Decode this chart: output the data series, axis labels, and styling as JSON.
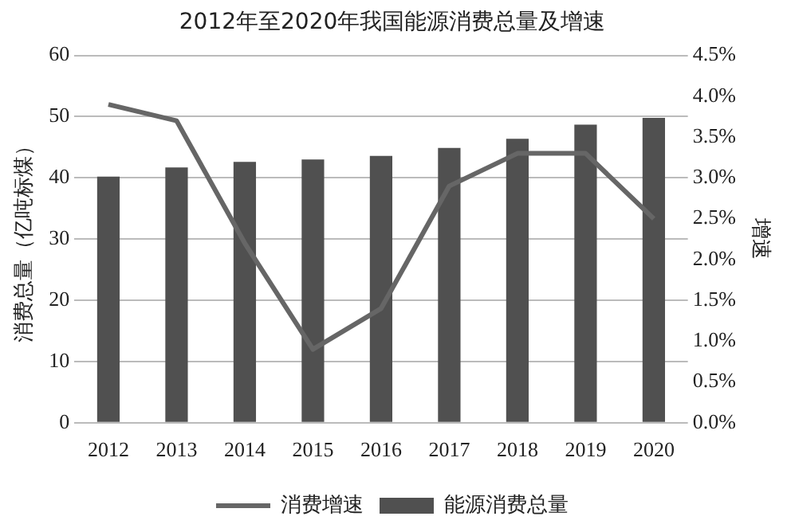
{
  "chart_data": {
    "type": "bar",
    "title": "2012年至2020年我国能源消费总量及增速",
    "ylabel": "消费总量（亿吨标煤）",
    "y2label": "增速",
    "categories": [
      "2012",
      "2013",
      "2014",
      "2015",
      "2016",
      "2017",
      "2018",
      "2019",
      "2020"
    ],
    "series": [
      {
        "name": "能源消费总量",
        "color": "#505050",
        "values": [
          40.2,
          41.7,
          42.6,
          43.0,
          43.6,
          44.9,
          46.4,
          48.7,
          49.8
        ]
      },
      {
        "name": "消费增速",
        "type": "line",
        "axis": "y2",
        "color": "#666666",
        "values": [
          3.9,
          3.7,
          2.2,
          0.9,
          1.4,
          2.9,
          3.3,
          3.3,
          2.5
        ]
      }
    ],
    "ylim": [
      0,
      60
    ],
    "yticks": [
      0,
      10,
      20,
      30,
      40,
      50,
      60
    ],
    "y2lim": [
      0,
      4.5
    ],
    "y2ticks": [
      {
        "value": 0,
        "label": "0.0%"
      },
      {
        "value": 0.5,
        "label": "0.5%"
      },
      {
        "value": 1,
        "label": "1.0%"
      },
      {
        "value": 1.5,
        "label": "1.5%"
      },
      {
        "value": 2,
        "label": "2.0%"
      },
      {
        "value": 2.5,
        "label": "2.5%"
      },
      {
        "value": 3,
        "label": "3.0%"
      },
      {
        "value": 3.5,
        "label": "3.5%"
      },
      {
        "value": 4,
        "label": "4.0%"
      },
      {
        "value": 4.5,
        "label": "4.5%"
      }
    ],
    "grid": "y",
    "legend": "bottom",
    "marker": "none"
  }
}
